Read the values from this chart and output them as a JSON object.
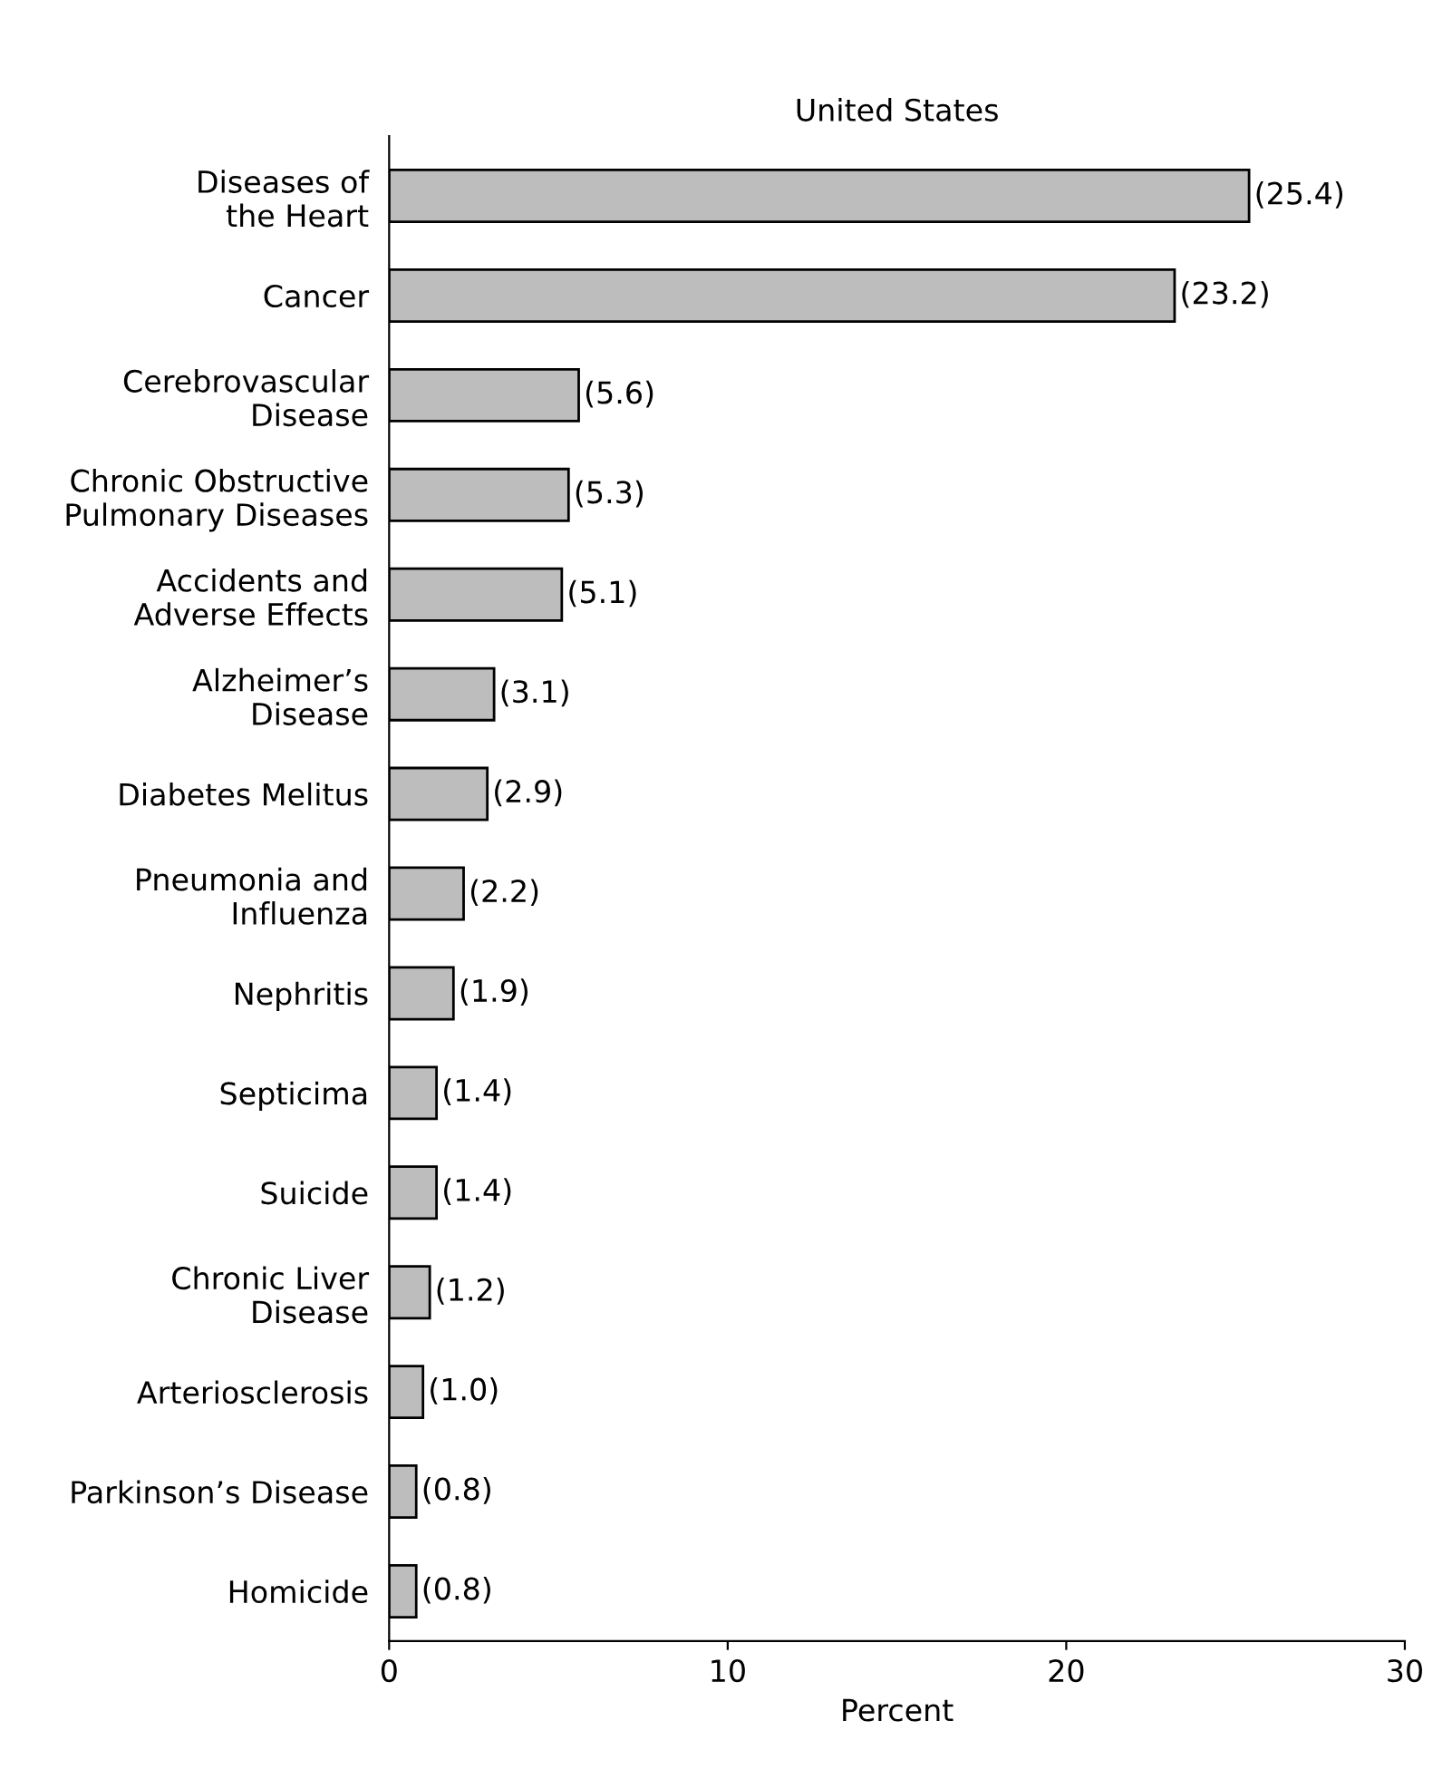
{
  "chart_data": {
    "type": "bar",
    "orientation": "horizontal",
    "title": "United States",
    "xlabel": "Percent",
    "categories": [
      "Diseases of\nthe Heart",
      "Cancer",
      "Cerebrovascular\nDisease",
      "Chronic Obstructive\nPulmonary Diseases",
      "Accidents and\nAdverse Effects",
      "Alzheimer’s\nDisease",
      "Diabetes Melitus",
      "Pneumonia and\nInfluenza",
      "Nephritis",
      "Septicima",
      "Suicide",
      "Chronic Liver\nDisease",
      "Arteriosclerosis",
      "Parkinson’s Disease",
      "Homicide"
    ],
    "values": [
      25.4,
      23.2,
      5.6,
      5.3,
      5.1,
      3.1,
      2.9,
      2.2,
      1.9,
      1.4,
      1.4,
      1.2,
      1.0,
      0.8,
      0.8
    ],
    "value_labels": [
      "(25.4)",
      "(23.2)",
      "(5.6)",
      "(5.3)",
      "(5.1)",
      "(3.1)",
      "(2.9)",
      "(2.2)",
      "(1.9)",
      "(1.4)",
      "(1.4)",
      "(1.2)",
      "(1.0)",
      "(0.8)",
      "(0.8)"
    ],
    "color": "#bdbdbd",
    "xlim": [
      0,
      30
    ],
    "xticks": [
      0,
      10,
      20,
      30
    ],
    "grid": false,
    "legend": false
  }
}
